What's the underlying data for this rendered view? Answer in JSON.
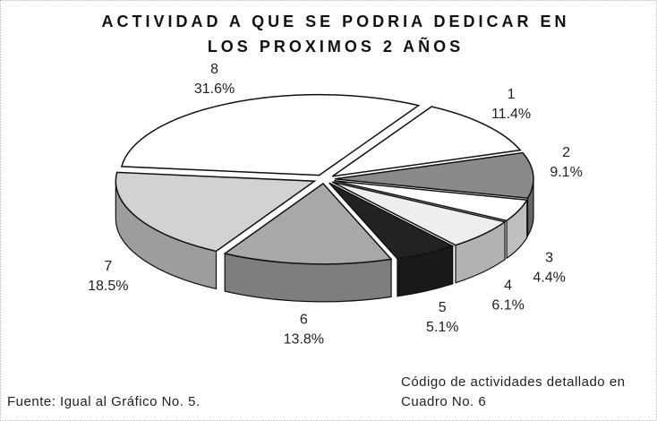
{
  "chart_data": {
    "type": "pie",
    "title": "ACTIVIDAD A QUE SE PODRIA DEDICAR EN LOS PROXIMOS 2 AÑOS",
    "categories": [
      "1",
      "2",
      "3",
      "4",
      "5",
      "6",
      "7",
      "8"
    ],
    "values": [
      11.4,
      9.1,
      4.4,
      6.1,
      5.1,
      13.8,
      18.5,
      31.6
    ],
    "value_labels": [
      "11.4%",
      "9.1%",
      "4.4%",
      "6.1%",
      "5.1%",
      "13.8%",
      "18.5%",
      "31.6%"
    ],
    "colors": [
      "#ffffff",
      "#8a8a8a",
      "#ffffff",
      "#eeeeee",
      "#222222",
      "#a8a8a8",
      "#d2d2d2",
      "#ffffff"
    ],
    "annotations": [
      "Fuente: Igual al Gráfico No. 5.",
      "Código de actividades detallado en Cuadro No. 6"
    ]
  }
}
